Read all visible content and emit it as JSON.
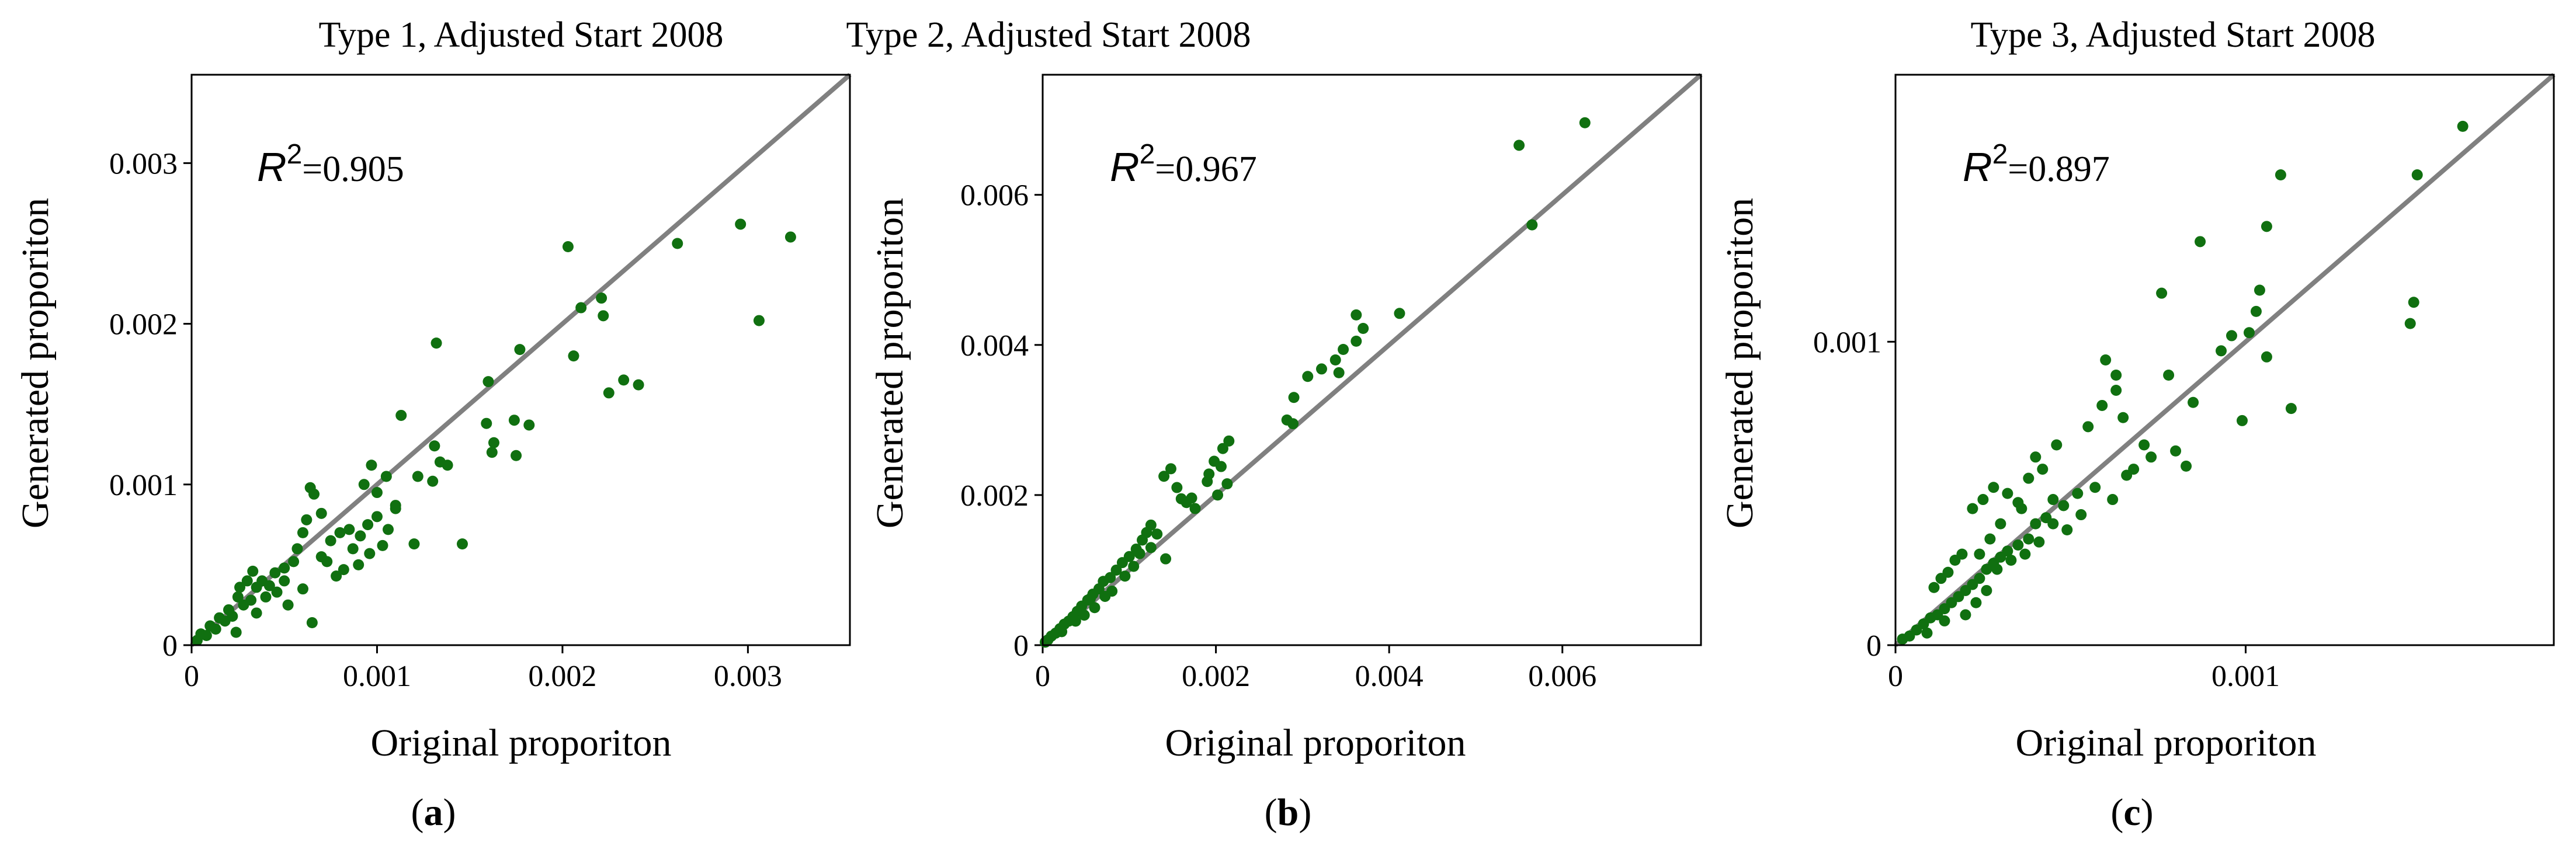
{
  "colors": {
    "points": "#107010",
    "identity_line": "#808080",
    "axes": "#000000"
  },
  "chart_data": [
    {
      "type": "scatter",
      "title": "Type 1, Adjusted Start 2008",
      "subfig": "a",
      "xlabel": "Original proporiton",
      "ylabel": "Generated proporiton",
      "r2_label": "R",
      "r2_sup": "2",
      "r2_value": "=0.905",
      "xlim": [
        0,
        0.00355
      ],
      "ylim": [
        0,
        0.00355
      ],
      "xticks": [
        {
          "v": 0,
          "label": "0"
        },
        {
          "v": 0.001,
          "label": "0.001"
        },
        {
          "v": 0.002,
          "label": "0.002"
        },
        {
          "v": 0.003,
          "label": "0.003"
        }
      ],
      "yticks": [
        {
          "v": 0,
          "label": "0"
        },
        {
          "v": 0.001,
          "label": "0.001"
        },
        {
          "v": 0.002,
          "label": "0.002"
        },
        {
          "v": 0.003,
          "label": "0.003"
        }
      ],
      "identity_line": true,
      "points": [
        [
          0.00296,
          0.00262
        ],
        [
          0.00323,
          0.00254
        ],
        [
          0.00306,
          0.00202
        ],
        [
          0.00262,
          0.0025
        ],
        [
          0.00203,
          0.00248
        ],
        [
          0.00221,
          0.00216
        ],
        [
          0.0021,
          0.0021
        ],
        [
          0.00222,
          0.00205
        ],
        [
          0.00206,
          0.0018
        ],
        [
          0.00233,
          0.00165
        ],
        [
          0.00225,
          0.00157
        ],
        [
          0.00241,
          0.00162
        ],
        [
          0.00177,
          0.00184
        ],
        [
          0.0016,
          0.00164
        ],
        [
          0.00174,
          0.0014
        ],
        [
          0.00182,
          0.00137
        ],
        [
          0.00163,
          0.00126
        ],
        [
          0.00175,
          0.00118
        ],
        [
          0.00159,
          0.00138
        ],
        [
          0.00162,
          0.0012
        ],
        [
          0.00132,
          0.00188
        ],
        [
          0.00113,
          0.00143
        ],
        [
          0.00131,
          0.00124
        ],
        [
          0.00134,
          0.00114
        ],
        [
          0.00122,
          0.00105
        ],
        [
          0.00138,
          0.00112
        ],
        [
          0.0013,
          0.00102
        ],
        [
          0.00146,
          0.00063
        ],
        [
          0.00105,
          0.00105
        ],
        [
          0.001,
          0.00095
        ],
        [
          0.00097,
          0.00112
        ],
        [
          0.00093,
          0.001
        ],
        [
          0.0011,
          0.00087
        ],
        [
          0.001,
          0.0008
        ],
        [
          0.00095,
          0.00075
        ],
        [
          0.00106,
          0.00072
        ],
        [
          0.00091,
          0.00068
        ],
        [
          0.00085,
          0.00072
        ],
        [
          0.0008,
          0.0007
        ],
        [
          0.00075,
          0.00065
        ],
        [
          0.00096,
          0.00057
        ],
        [
          0.0009,
          0.0005
        ],
        [
          0.00082,
          0.00047
        ],
        [
          0.00078,
          0.00043
        ],
        [
          0.00103,
          0.00062
        ],
        [
          0.00064,
          0.00098
        ],
        [
          0.00066,
          0.00094
        ],
        [
          0.0007,
          0.00082
        ],
        [
          0.00062,
          0.00078
        ],
        [
          0.0006,
          0.0007
        ],
        [
          0.00057,
          0.0006
        ],
        [
          0.00055,
          0.00052
        ],
        [
          0.0005,
          0.00048
        ],
        [
          0.00045,
          0.00045
        ],
        [
          0.0005,
          0.0004
        ],
        [
          0.00042,
          0.00037
        ],
        [
          0.0004,
          0.0003
        ],
        [
          0.00038,
          0.0004
        ],
        [
          0.00035,
          0.00036
        ],
        [
          0.00032,
          0.00028
        ],
        [
          0.0003,
          0.0004
        ],
        [
          0.00028,
          0.00025
        ],
        [
          0.00025,
          0.0003
        ],
        [
          0.00022,
          0.00018
        ],
        [
          0.0002,
          0.00022
        ],
        [
          0.00018,
          0.00015
        ],
        [
          0.00015,
          0.00017
        ],
        [
          0.00013,
          0.0001
        ],
        [
          0.0001,
          0.00012
        ],
        [
          8e-05,
          6e-05
        ],
        [
          5e-05,
          7e-05
        ],
        [
          3e-05,
          3e-05
        ],
        [
          0.00065,
          0.00014
        ],
        [
          0.00046,
          0.00033
        ],
        [
          0.00052,
          0.00025
        ],
        [
          0.0007,
          0.00055
        ],
        [
          0.00073,
          0.00052
        ],
        [
          0.00087,
          0.0006
        ],
        [
          0.0012,
          0.00063
        ],
        [
          0.0011,
          0.00085
        ],
        [
          0.00024,
          8e-05
        ],
        [
          0.00035,
          0.0002
        ],
        [
          0.0006,
          0.00035
        ],
        [
          0.00033,
          0.00046
        ],
        [
          0.00026,
          0.00036
        ]
      ]
    },
    {
      "type": "scatter",
      "title": "Type 2, Adjusted Start 2008",
      "subfig": "b",
      "xlabel": "Original proporiton",
      "ylabel": "Generated proporiton",
      "r2_label": "R",
      "r2_sup": "2",
      "r2_value": "=0.967",
      "xlim": [
        0,
        0.0076
      ],
      "ylim": [
        0,
        0.0076
      ],
      "xticks": [
        {
          "v": 0,
          "label": "0"
        },
        {
          "v": 0.002,
          "label": "0.002"
        },
        {
          "v": 0.004,
          "label": "0.004"
        },
        {
          "v": 0.006,
          "label": "0.006"
        }
      ],
      "yticks": [
        {
          "v": 0,
          "label": "0"
        },
        {
          "v": 0.002,
          "label": "0.002"
        },
        {
          "v": 0.004,
          "label": "0.004"
        },
        {
          "v": 0.006,
          "label": "0.006"
        }
      ],
      "identity_line": true,
      "points": [
        [
          0.00626,
          0.00696
        ],
        [
          0.0055,
          0.00666
        ],
        [
          0.00565,
          0.0056
        ],
        [
          0.00412,
          0.00442
        ],
        [
          0.00362,
          0.0044
        ],
        [
          0.0037,
          0.00422
        ],
        [
          0.00362,
          0.00405
        ],
        [
          0.00347,
          0.00394
        ],
        [
          0.00338,
          0.0038
        ],
        [
          0.00342,
          0.00363
        ],
        [
          0.00322,
          0.00368
        ],
        [
          0.00306,
          0.00358
        ],
        [
          0.0029,
          0.0033
        ],
        [
          0.00282,
          0.003
        ],
        [
          0.00289,
          0.00295
        ],
        [
          0.00215,
          0.00272
        ],
        [
          0.00208,
          0.00262
        ],
        [
          0.00198,
          0.00245
        ],
        [
          0.00206,
          0.00238
        ],
        [
          0.00192,
          0.00228
        ],
        [
          0.00213,
          0.00215
        ],
        [
          0.00202,
          0.002
        ],
        [
          0.0019,
          0.00218
        ],
        [
          0.00172,
          0.00196
        ],
        [
          0.0016,
          0.00195
        ],
        [
          0.00148,
          0.00235
        ],
        [
          0.0014,
          0.00225
        ],
        [
          0.00155,
          0.0021
        ],
        [
          0.00125,
          0.0016
        ],
        [
          0.0012,
          0.0015
        ],
        [
          0.00115,
          0.0014
        ],
        [
          0.00108,
          0.00128
        ],
        [
          0.001,
          0.00118
        ],
        [
          0.00092,
          0.0011
        ],
        [
          0.00085,
          0.001
        ],
        [
          0.00078,
          0.0009
        ],
        [
          0.0007,
          0.00085
        ],
        [
          0.00065,
          0.00075
        ],
        [
          0.00058,
          0.00068
        ],
        [
          0.00052,
          0.0006
        ],
        [
          0.00045,
          0.00052
        ],
        [
          0.0004,
          0.00045
        ],
        [
          0.00035,
          0.00038
        ],
        [
          0.0003,
          0.00032
        ],
        [
          0.00025,
          0.00028
        ],
        [
          0.0002,
          0.00022
        ],
        [
          0.00015,
          0.00016
        ],
        [
          0.0001,
          0.00012
        ],
        [
          6e-05,
          7e-05
        ],
        [
          3e-05,
          4e-05
        ],
        [
          0.00105,
          0.00105
        ],
        [
          0.00095,
          0.00092
        ],
        [
          0.0008,
          0.00072
        ],
        [
          0.00072,
          0.00065
        ],
        [
          0.0006,
          0.0005
        ],
        [
          0.00048,
          0.0004
        ],
        [
          0.00038,
          0.00032
        ],
        [
          0.00142,
          0.00115
        ],
        [
          0.00125,
          0.0013
        ],
        [
          0.00112,
          0.00122
        ],
        [
          0.00132,
          0.00148
        ],
        [
          0.00166,
          0.0019
        ],
        [
          0.00176,
          0.00182
        ],
        [
          0.00022,
          0.00018
        ],
        [
          0.00055,
          0.00062
        ]
      ]
    },
    {
      "type": "scatter",
      "title": "Type 3, Adjusted Start 2008",
      "subfig": "c",
      "xlabel": "Original proporiton",
      "ylabel": "Generated proporiton",
      "r2_label": "R",
      "r2_sup": "2",
      "r2_value": "=0.897",
      "xlim": [
        0,
        0.00188
      ],
      "ylim": [
        0,
        0.00188
      ],
      "xticks": [
        {
          "v": 0,
          "label": "0"
        },
        {
          "v": 0.001,
          "label": "0.001"
        }
      ],
      "yticks": [
        {
          "v": 0,
          "label": "0"
        },
        {
          "v": 0.001,
          "label": "0.001"
        }
      ],
      "identity_line": true,
      "points": [
        [
          0.00162,
          0.00171
        ],
        [
          0.00149,
          0.00155
        ],
        [
          0.00148,
          0.00113
        ],
        [
          0.00147,
          0.00106
        ],
        [
          0.0011,
          0.00155
        ],
        [
          0.00106,
          0.00138
        ],
        [
          0.00087,
          0.00133
        ],
        [
          0.00113,
          0.00078
        ],
        [
          0.00104,
          0.00117
        ],
        [
          0.00103,
          0.0011
        ],
        [
          0.00101,
          0.00103
        ],
        [
          0.00106,
          0.00095
        ],
        [
          0.00099,
          0.00074
        ],
        [
          0.00096,
          0.00102
        ],
        [
          0.00093,
          0.00097
        ],
        [
          0.00076,
          0.00116
        ],
        [
          0.00078,
          0.00089
        ],
        [
          0.00085,
          0.0008
        ],
        [
          0.00083,
          0.00059
        ],
        [
          0.0008,
          0.00064
        ],
        [
          0.00073,
          0.00062
        ],
        [
          0.00071,
          0.00066
        ],
        [
          0.00068,
          0.00058
        ],
        [
          0.0006,
          0.00094
        ],
        [
          0.00063,
          0.00089
        ],
        [
          0.00063,
          0.00084
        ],
        [
          0.00059,
          0.00079
        ],
        [
          0.00065,
          0.00075
        ],
        [
          0.00055,
          0.00072
        ],
        [
          0.00066,
          0.00056
        ],
        [
          0.00062,
          0.00048
        ],
        [
          0.00052,
          0.0005
        ],
        [
          0.00048,
          0.00046
        ],
        [
          0.00045,
          0.00048
        ],
        [
          0.00043,
          0.00042
        ],
        [
          0.0004,
          0.0004
        ],
        [
          0.00038,
          0.00035
        ],
        [
          0.00035,
          0.00033
        ],
        [
          0.00032,
          0.00031
        ],
        [
          0.0003,
          0.00029
        ],
        [
          0.00028,
          0.00027
        ],
        [
          0.00026,
          0.00025
        ],
        [
          0.00024,
          0.00022
        ],
        [
          0.00022,
          0.0002
        ],
        [
          0.0002,
          0.00018
        ],
        [
          0.00018,
          0.00016
        ],
        [
          0.00016,
          0.00014
        ],
        [
          0.00014,
          0.00012
        ],
        [
          0.00012,
          0.0001
        ],
        [
          0.0001,
          9e-05
        ],
        [
          8e-05,
          7e-05
        ],
        [
          6e-05,
          5e-05
        ],
        [
          4e-05,
          3e-05
        ],
        [
          2e-05,
          2e-05
        ],
        [
          0.00025,
          0.00048
        ],
        [
          0.00028,
          0.00052
        ],
        [
          0.00022,
          0.00045
        ],
        [
          0.0003,
          0.0004
        ],
        [
          0.00032,
          0.0005
        ],
        [
          0.00035,
          0.00047
        ],
        [
          0.00019,
          0.0003
        ],
        [
          0.00017,
          0.00028
        ],
        [
          0.00015,
          0.00024
        ],
        [
          0.00013,
          0.00022
        ],
        [
          0.00011,
          0.00019
        ],
        [
          0.00024,
          0.0003
        ],
        [
          0.00027,
          0.00035
        ],
        [
          0.00029,
          0.00025
        ],
        [
          0.00033,
          0.00028
        ],
        [
          0.00037,
          0.0003
        ],
        [
          0.00041,
          0.00034
        ],
        [
          0.00045,
          0.0004
        ],
        [
          0.00049,
          0.00038
        ],
        [
          0.00053,
          0.00043
        ],
        [
          0.00057,
          0.00052
        ],
        [
          0.0002,
          0.0001
        ],
        [
          0.00023,
          0.00014
        ],
        [
          0.00026,
          0.00018
        ],
        [
          0.00014,
          8e-05
        ],
        [
          9e-05,
          4e-05
        ],
        [
          0.0004,
          0.00062
        ],
        [
          0.00042,
          0.00058
        ],
        [
          0.00038,
          0.00055
        ],
        [
          0.00046,
          0.00066
        ],
        [
          0.00036,
          0.00045
        ]
      ]
    }
  ]
}
